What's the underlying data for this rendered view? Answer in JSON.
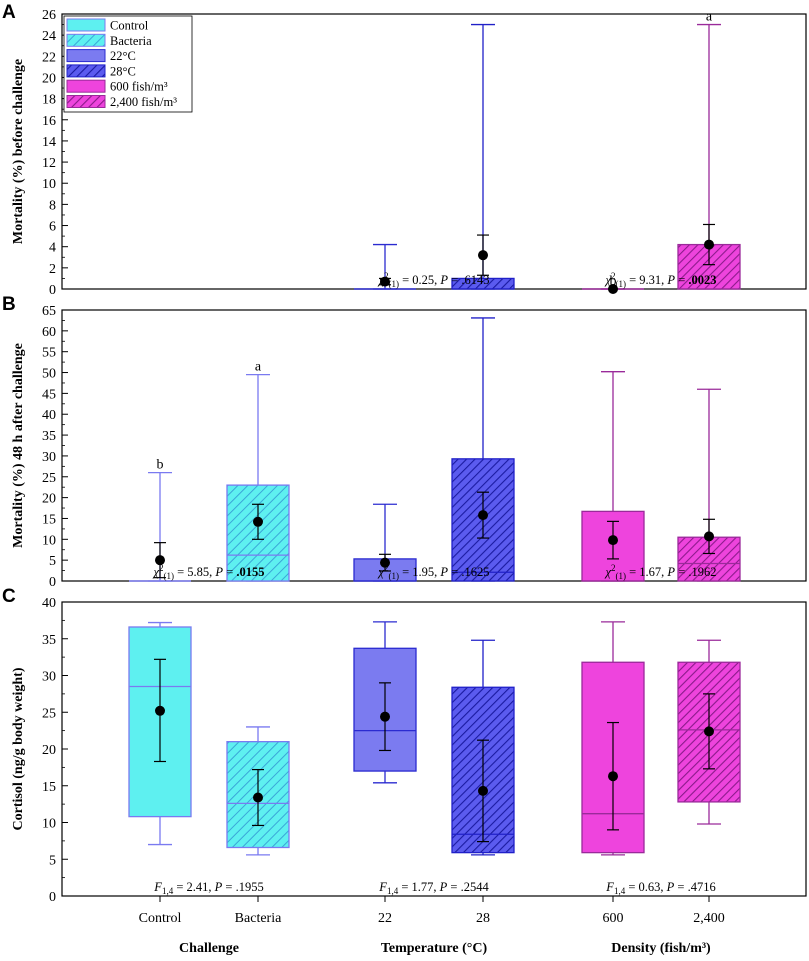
{
  "figure": {
    "categories": [
      "Control",
      "Bacteria",
      "22",
      "28",
      "600",
      "2,400"
    ],
    "groups": [
      "Challenge",
      "Temperature (°C)",
      "Density (fish/m³)"
    ]
  },
  "legend": [
    {
      "label": "Control",
      "color": "#5ef0f0",
      "hatch": false
    },
    {
      "label": "Bacteria",
      "color": "#5ef0f0",
      "hatch": true
    },
    {
      "label": "22°C",
      "color": "#7b7bf0",
      "hatch": false
    },
    {
      "label": "28°C",
      "color": "#4b4bd8",
      "hatch": true
    },
    {
      "label": "600 fish/m³",
      "color": "#ee44dd",
      "hatch": false
    },
    {
      "label": "2,400 fish/m³",
      "color": "#ee44dd",
      "hatch": true
    }
  ],
  "chart_data": [
    {
      "panel": "A",
      "type": "box",
      "ylabel": "Mortality (%) before challenge",
      "ylim": [
        0,
        26
      ],
      "yticks": [
        0,
        2,
        4,
        6,
        8,
        10,
        12,
        14,
        16,
        18,
        20,
        22,
        24,
        26
      ],
      "boxes": [
        {
          "category": "22",
          "min": 0,
          "q1": 0,
          "median": 0,
          "q3": 0,
          "max": 4.2,
          "mean": 0.7,
          "ci_low": 0.4,
          "ci_high": 1.0
        },
        {
          "category": "28",
          "min": 0,
          "q1": 0,
          "median": 0,
          "q3": 1.0,
          "max": 25,
          "mean": 3.2,
          "ci_low": 1.3,
          "ci_high": 5.1
        },
        {
          "category": "600",
          "min": 0,
          "q1": 0,
          "median": 0,
          "q3": 0,
          "max": 0,
          "mean": 0,
          "ci_low": 0,
          "ci_high": 0,
          "letter": "b"
        },
        {
          "category": "2,400",
          "min": 0,
          "q1": 0,
          "median": 0,
          "q3": 4.2,
          "max": 25,
          "mean": 4.2,
          "ci_low": 2.3,
          "ci_high": 6.1,
          "letter": "a"
        }
      ],
      "stats": [
        {
          "group": "Temperature (°C)",
          "prefix": "χ²(1) = 0.25, P = ",
          "p": ".6143",
          "bold": false
        },
        {
          "group": "Density (fish/m³)",
          "prefix": "χ²(1) = 9.31, P = ",
          "p": ".0023",
          "bold": true
        }
      ]
    },
    {
      "panel": "B",
      "type": "box",
      "ylabel": "Mortality (%) 48 h after challenge",
      "ylim": [
        0,
        65
      ],
      "yticks": [
        0,
        5,
        10,
        15,
        20,
        25,
        30,
        35,
        40,
        45,
        50,
        55,
        60,
        65
      ],
      "boxes": [
        {
          "category": "Control",
          "min": 0,
          "q1": 0,
          "median": 0,
          "q3": 0,
          "max": 26,
          "mean": 5,
          "ci_low": 0.8,
          "ci_high": 9.2,
          "letter": "b"
        },
        {
          "category": "Bacteria",
          "min": 0,
          "q1": 0,
          "median": 6.2,
          "q3": 23,
          "max": 49.5,
          "mean": 14.2,
          "ci_low": 10,
          "ci_high": 18.4,
          "letter": "a"
        },
        {
          "category": "22",
          "min": 0,
          "q1": 0,
          "median": 0,
          "q3": 5.3,
          "max": 18.4,
          "mean": 4.4,
          "ci_low": 2.4,
          "ci_high": 6.4
        },
        {
          "category": "28",
          "min": 0,
          "q1": 0,
          "median": 2.1,
          "q3": 29.3,
          "max": 63.1,
          "mean": 15.8,
          "ci_low": 10.3,
          "ci_high": 21.3
        },
        {
          "category": "600",
          "min": 0,
          "q1": 0,
          "median": 0,
          "q3": 16.7,
          "max": 50.2,
          "mean": 9.8,
          "ci_low": 5.3,
          "ci_high": 14.3
        },
        {
          "category": "2,400",
          "min": 0,
          "q1": 0,
          "median": 4.2,
          "q3": 10.5,
          "max": 46,
          "mean": 10.7,
          "ci_low": 6.6,
          "ci_high": 14.8
        }
      ],
      "stats": [
        {
          "group": "Challenge",
          "prefix": "χ²(1) = 5.85, P = ",
          "p": ".0155",
          "bold": true
        },
        {
          "group": "Temperature (°C)",
          "prefix": "χ²(1) = 1.95, P = ",
          "p": ".1625",
          "bold": false
        },
        {
          "group": "Density (fish/m³)",
          "prefix": "χ²(1) = 1.67, P = ",
          "p": ".1962",
          "bold": false
        }
      ]
    },
    {
      "panel": "C",
      "type": "box",
      "ylabel": "Cortisol (ng/g body weight)",
      "ylim": [
        0,
        40
      ],
      "yticks": [
        0,
        5,
        10,
        15,
        20,
        25,
        30,
        35,
        40
      ],
      "boxes": [
        {
          "category": "Control",
          "min": 7,
          "q1": 10.8,
          "median": 28.5,
          "q3": 36.6,
          "max": 37.2,
          "mean": 25.2,
          "ci_low": 18.3,
          "ci_high": 32.2
        },
        {
          "category": "Bacteria",
          "min": 5.6,
          "q1": 6.6,
          "median": 12.6,
          "q3": 21,
          "max": 23,
          "mean": 13.4,
          "ci_low": 9.6,
          "ci_high": 17.2
        },
        {
          "category": "22",
          "min": 15.4,
          "q1": 17,
          "median": 22.5,
          "q3": 33.7,
          "max": 37.3,
          "mean": 24.4,
          "ci_low": 19.8,
          "ci_high": 29
        },
        {
          "category": "28",
          "min": 5.6,
          "q1": 5.9,
          "median": 8.4,
          "q3": 28.4,
          "max": 34.8,
          "mean": 14.3,
          "ci_low": 7.4,
          "ci_high": 21.2
        },
        {
          "category": "600",
          "min": 5.6,
          "q1": 5.9,
          "median": 11.2,
          "q3": 31.8,
          "max": 37.3,
          "mean": 16.3,
          "ci_low": 9,
          "ci_high": 23.6
        },
        {
          "category": "2,400",
          "min": 9.8,
          "q1": 12.8,
          "median": 22.6,
          "q3": 31.8,
          "max": 34.8,
          "mean": 22.4,
          "ci_low": 17.3,
          "ci_high": 27.5
        }
      ],
      "stats": [
        {
          "group": "Challenge",
          "prefix": "F1,4 = 2.41, P = ",
          "p": ".1955",
          "bold": false
        },
        {
          "group": "Temperature (°C)",
          "prefix": "F1,4 = 1.77, P = ",
          "p": ".2544",
          "bold": false
        },
        {
          "group": "Density (fish/m³)",
          "prefix": "F1,4 = 0.63, P = ",
          "p": ".4716",
          "bold": false
        }
      ]
    }
  ]
}
